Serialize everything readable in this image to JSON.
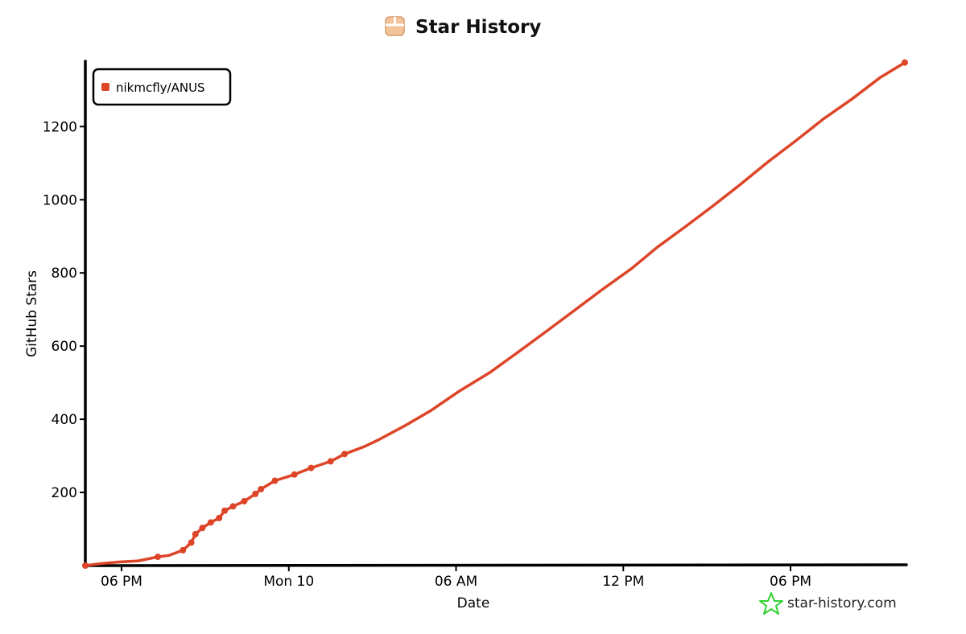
{
  "header": {
    "title": "Star History",
    "logo_icon": "star-history-box-icon"
  },
  "watermark": {
    "text": "star-history.com",
    "icon": "star-outline-icon",
    "color": "#2fd12f"
  },
  "chart_data": {
    "type": "line",
    "title": "Star History",
    "xlabel": "Date",
    "ylabel": "GitHub Stars",
    "x_tick_labels": [
      "06 PM",
      "Mon 10",
      "06 AM",
      "12 PM",
      "06 PM"
    ],
    "x_tick_hours": [
      2,
      8,
      14,
      20,
      26
    ],
    "x_range_hours": [
      0.7,
      30.1
    ],
    "y_ticks": [
      200,
      400,
      600,
      800,
      1000,
      1200
    ],
    "ylim": [
      0,
      1370
    ],
    "grid": false,
    "legend_position": "top-left",
    "series": [
      {
        "name": "nikmcfly/ANUS",
        "color": "#dd4528",
        "points": [
          [
            0.7,
            0
          ],
          [
            1.2,
            5
          ],
          [
            1.9,
            10
          ],
          [
            2.6,
            13
          ],
          [
            3.3,
            24
          ],
          [
            3.7,
            28
          ],
          [
            4.2,
            42
          ],
          [
            4.5,
            63
          ],
          [
            4.65,
            86
          ],
          [
            4.9,
            103
          ],
          [
            5.2,
            118
          ],
          [
            5.5,
            130
          ],
          [
            5.7,
            150
          ],
          [
            6.0,
            162
          ],
          [
            6.4,
            176
          ],
          [
            6.8,
            196
          ],
          [
            7.0,
            209
          ],
          [
            7.5,
            232
          ],
          [
            8.2,
            249
          ],
          [
            8.8,
            267
          ],
          [
            9.5,
            285
          ],
          [
            10.0,
            305
          ],
          [
            10.7,
            325
          ],
          [
            11.2,
            343
          ],
          [
            12.2,
            384
          ],
          [
            13.1,
            424
          ],
          [
            14.1,
            476
          ],
          [
            15.2,
            527
          ],
          [
            16.2,
            582
          ],
          [
            17.2,
            638
          ],
          [
            18.2,
            695
          ],
          [
            19.2,
            752
          ],
          [
            20.3,
            812
          ],
          [
            21.2,
            869
          ],
          [
            22.2,
            925
          ],
          [
            23.2,
            982
          ],
          [
            24.2,
            1042
          ],
          [
            25.2,
            1104
          ],
          [
            26.2,
            1162
          ],
          [
            27.2,
            1222
          ],
          [
            28.2,
            1275
          ],
          [
            29.2,
            1333
          ],
          [
            30.1,
            1375
          ]
        ],
        "marker_points": [
          [
            0.7,
            0
          ],
          [
            3.3,
            24
          ],
          [
            4.2,
            42
          ],
          [
            4.5,
            63
          ],
          [
            4.65,
            86
          ],
          [
            4.9,
            103
          ],
          [
            5.2,
            118
          ],
          [
            5.5,
            130
          ],
          [
            5.7,
            150
          ],
          [
            6.0,
            162
          ],
          [
            6.4,
            176
          ],
          [
            6.8,
            196
          ],
          [
            7.0,
            209
          ],
          [
            7.5,
            232
          ],
          [
            8.2,
            249
          ],
          [
            8.8,
            267
          ],
          [
            9.5,
            285
          ],
          [
            10.0,
            305
          ],
          [
            30.1,
            1375
          ]
        ]
      }
    ]
  }
}
